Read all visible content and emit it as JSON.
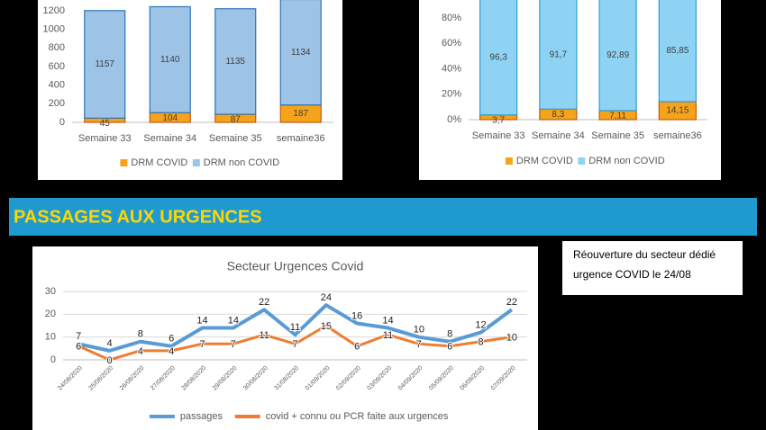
{
  "chart_data": [
    {
      "type": "stacked-bar",
      "categories": [
        "Semaine 33",
        "Semaine 34",
        "Semaine 35",
        "semaine36"
      ],
      "series": [
        {
          "name": "DRM COVID",
          "color": "#f5a31a",
          "values": [
            45,
            104,
            87,
            187
          ]
        },
        {
          "name": "DRM non COVID",
          "color": "#9dc3e6",
          "values": [
            1157,
            1140,
            1135,
            1134
          ]
        }
      ],
      "ylim": [
        0,
        1400
      ],
      "yticks": [
        0,
        200,
        400,
        600,
        800,
        1000,
        1200
      ],
      "grid": false
    },
    {
      "type": "stacked-bar",
      "categories": [
        "Semaine 33",
        "Semaine 34",
        "Semaine 35",
        "semaine36"
      ],
      "series": [
        {
          "name": "DRM COVID",
          "color": "#f5a31a",
          "values": [
            3.7,
            8.3,
            7.11,
            14.15
          ],
          "value_labels": [
            "3,7",
            "8,3",
            "7,11",
            "14,15"
          ]
        },
        {
          "name": "DRM non COVID",
          "color": "#8fd3f4",
          "values": [
            96.3,
            91.7,
            92.89,
            85.85
          ],
          "value_labels": [
            "96,3",
            "91,7",
            "92,89",
            "85,85"
          ]
        }
      ],
      "ylim": [
        0,
        100
      ],
      "yticks": [
        {
          "value": 0,
          "label": "0%"
        },
        {
          "value": 20,
          "label": "20%"
        },
        {
          "value": 40,
          "label": "40%"
        },
        {
          "value": 60,
          "label": "60%"
        },
        {
          "value": 80,
          "label": "80%"
        }
      ],
      "grid": false
    },
    {
      "type": "line",
      "title": "Secteur Urgences Covid",
      "categories": [
        "24/08/2020",
        "25/08/2020",
        "26/08/2020",
        "27/08/2020",
        "28/08/2020",
        "29/08/2020",
        "30/08/2020",
        "31/08/2020",
        "01/09/2020",
        "02/09/2020",
        "03/09/2020",
        "04/09/2020",
        "05/09/2020",
        "06/09/2020",
        "07/09/2020"
      ],
      "series": [
        {
          "name": "passages",
          "color": "#5b9bd5",
          "values": [
            7,
            4,
            8,
            6,
            14,
            14,
            22,
            11,
            24,
            16,
            14,
            10,
            8,
            12,
            22
          ]
        },
        {
          "name": "covid + connu ou PCR faite aux urgences",
          "color": "#ed7d31",
          "values": [
            6,
            0,
            4,
            4,
            7,
            7,
            11,
            7,
            15,
            6,
            11,
            7,
            6,
            8,
            10
          ]
        }
      ],
      "ylim": [
        0,
        30
      ],
      "yticks": [
        0,
        10,
        20,
        30
      ],
      "grid": true
    }
  ],
  "banner": "PASSAGES AUX URGENCES",
  "note": [
    "Réouverture du secteur dédié",
    "urgence COVID le 24/08"
  ]
}
